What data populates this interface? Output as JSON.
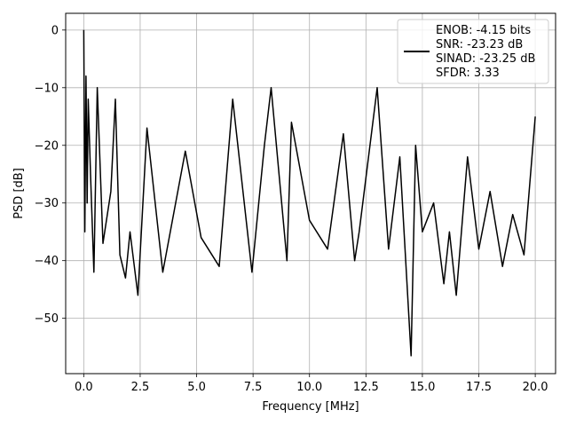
{
  "chart_data": {
    "type": "line",
    "title": "",
    "xlabel": "Frequency [MHz]",
    "ylabel": "PSD [dB]",
    "xlim": [
      -0.8,
      20.9
    ],
    "ylim": [
      -59.6,
      2.9
    ],
    "xticks": [
      0.0,
      2.5,
      5.0,
      7.5,
      10.0,
      12.5,
      15.0,
      17.5,
      20.0
    ],
    "xtick_labels": [
      "0.0",
      "2.5",
      "5.0",
      "7.5",
      "10.0",
      "12.5",
      "15.0",
      "17.5",
      "20.0"
    ],
    "yticks": [
      0,
      -10,
      -20,
      -30,
      -40,
      -50
    ],
    "ytick_labels": [
      "0",
      "−10",
      "−20",
      "−30",
      "−40",
      "−50"
    ],
    "grid": true,
    "legend_position": "top-right",
    "series_color": "#000000",
    "legend": [
      "ENOB: -4.15 bits",
      "SNR: -23.23 dB",
      "SINAD: -23.25 dB",
      "SFDR: 3.33"
    ],
    "series": [
      {
        "x": [
          0,
          0.05,
          0.1,
          0.15,
          0.2,
          0.3,
          0.45,
          0.6,
          0.85,
          1.2,
          1.4,
          1.6,
          1.85,
          2.05,
          2.4,
          2.8,
          3.5,
          4.5,
          5.2,
          6.0,
          6.6,
          7.45,
          8.0,
          8.3,
          9.0,
          9.2,
          10.0,
          10.8,
          11.5,
          12.0,
          12.2,
          13.0,
          13.5,
          14.0,
          14.5,
          14.7,
          15.0,
          15.5,
          15.95,
          16.2,
          16.5,
          17.0,
          17.5,
          18.0,
          18.55,
          19.0,
          19.5,
          20.0
        ],
        "y": [
          0,
          -35,
          -8,
          -30,
          -12,
          -25,
          -42,
          -10,
          -37,
          -28,
          -12,
          -39,
          -43,
          -35,
          -46,
          -17,
          -42,
          -21,
          -36,
          -41,
          -12,
          -42,
          -20,
          -10,
          -40,
          -16,
          -33,
          -38,
          -18,
          -40,
          -35,
          -10,
          -38,
          -22,
          -56.5,
          -20,
          -35,
          -30,
          -44,
          -35,
          -46,
          -22,
          -38,
          -28,
          -41,
          -32,
          -39,
          -15
        ]
      }
    ]
  }
}
